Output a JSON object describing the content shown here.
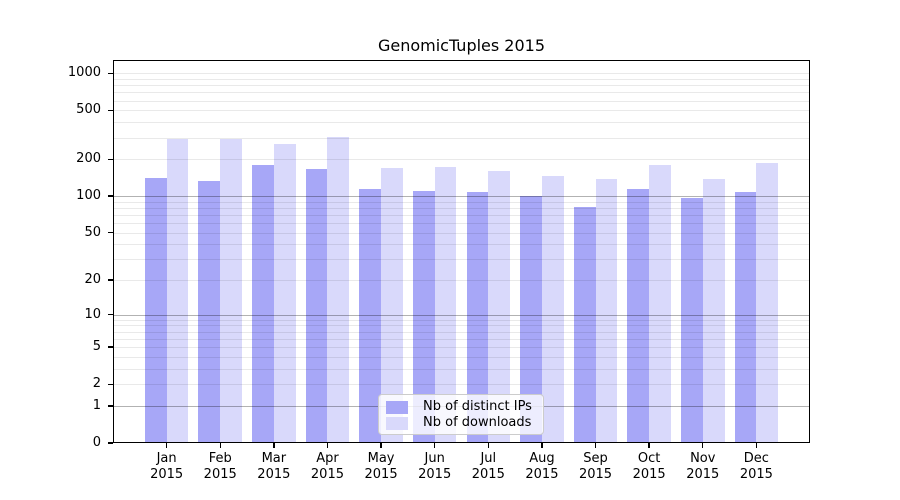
{
  "chart_data": {
    "type": "bar",
    "title": "GenomicTuples 2015",
    "categories": [
      "Jan 2015",
      "Feb 2015",
      "Mar 2015",
      "Apr 2015",
      "May 2015",
      "Jun 2015",
      "Jul 2015",
      "Aug 2015",
      "Sep 2015",
      "Oct 2015",
      "Nov 2015",
      "Dec 2015"
    ],
    "series": [
      {
        "name": "Nb of distinct IPs",
        "color": "#a7a7f7",
        "values": [
          140,
          133,
          180,
          166,
          115,
          110,
          108,
          100,
          82,
          115,
          96,
          109
        ]
      },
      {
        "name": "Nb of downloads",
        "color": "#d9d9fb",
        "values": [
          295,
          295,
          265,
          303,
          170,
          172,
          160,
          145,
          138,
          178,
          138,
          188
        ]
      }
    ],
    "xlabel": "",
    "ylabel": "",
    "y_axis": {
      "scale": "log(value+1)",
      "tick_labels": [
        "1000",
        "500",
        "200",
        "100",
        "50",
        "20",
        "10",
        "5",
        "2",
        "1",
        "0"
      ],
      "tick_values": [
        1000,
        500,
        200,
        100,
        50,
        20,
        10,
        5,
        2,
        1,
        0
      ],
      "range_top": 1290,
      "major_grid_values": [
        1,
        10,
        100
      ],
      "grid": "horizontal major+minor"
    },
    "legend_position": "inside bottom-center",
    "colors": {
      "frame": "#000000",
      "background": "#ffffff",
      "legend_border": "#cccccc"
    }
  }
}
